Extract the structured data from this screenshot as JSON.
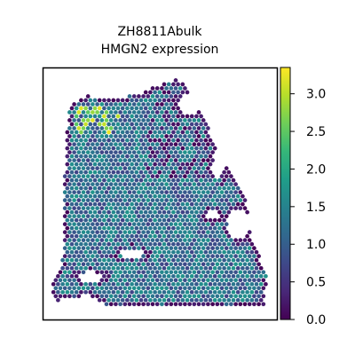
{
  "chart_data": {
    "type": "scatter",
    "title_lines": [
      "ZH8811Abulk",
      "HMGN2 expression"
    ],
    "xlabel": "",
    "ylabel": "",
    "colorbar": {
      "label": "",
      "range": [
        0,
        3.35
      ],
      "ticks": [
        0.0,
        0.5,
        1.0,
        1.5,
        2.0,
        2.5,
        3.0
      ],
      "tick_labels": [
        "0.0",
        "0.5",
        "1.0",
        "1.5",
        "2.0",
        "2.5",
        "3.0"
      ],
      "colormap": "viridis"
    },
    "axes": {
      "ticks_visible": false,
      "grid": false
    },
    "colors": {
      "viridis": [
        "#440154",
        "#482878",
        "#3e4989",
        "#31688e",
        "#26828e",
        "#1f9e89",
        "#35b779",
        "#6ece58",
        "#b5de2b",
        "#fde725"
      ]
    },
    "series": [
      {
        "spots": "hexagonal spatial transcriptomics spots, tissue section",
        "typical_value": 1.2
      }
    ]
  }
}
